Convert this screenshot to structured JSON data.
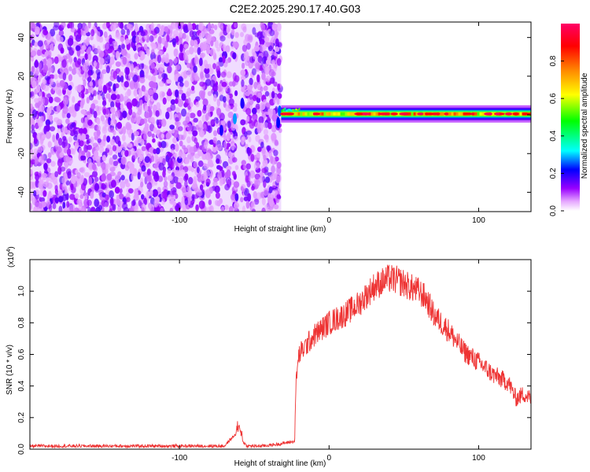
{
  "title": "C2E2.2025.290.17.40.G03",
  "chart_data": [
    {
      "type": "heatmap",
      "xlabel": "Height of straight line (km)",
      "ylabel": "Frequency (Hz)",
      "xlim": [
        -200,
        135
      ],
      "ylim": [
        -50,
        48
      ],
      "xticks": [
        -100,
        0,
        100
      ],
      "yticks": [
        -40,
        -20,
        0,
        20,
        40
      ],
      "colorbar": {
        "label": "Normalized spectral amplitude",
        "range": [
          0,
          1
        ],
        "ticks": [
          0.0,
          0.2,
          0.4,
          0.6,
          0.8
        ],
        "colors": [
          "#ffffff",
          "#e6a8ff",
          "#9900ff",
          "#0000ff",
          "#00ffff",
          "#00ff00",
          "#ffff00",
          "#ff8800",
          "#ff0000",
          "#ff0066"
        ]
      },
      "noise_region": {
        "x": [
          -200,
          -32
        ],
        "freq": [
          -50,
          47
        ],
        "amplitude": [
          0.0,
          0.15
        ]
      },
      "gap_at_x": -60,
      "tone": {
        "x": [
          -32,
          135
        ],
        "freq": 0.5,
        "peak_amplitude": 1.0
      }
    },
    {
      "type": "line",
      "xlabel": "Height of straight line (km)",
      "ylabel": "SNR (10 * v/v)",
      "yscale_label_base": "(x10",
      "yscale_label_exp": "4",
      "yscale_label_close": ")",
      "xlim": [
        -200,
        135
      ],
      "ylim": [
        0,
        1.2
      ],
      "xticks": [
        -100,
        0,
        100
      ],
      "yticks": [
        0.0,
        0.2,
        0.4,
        0.6,
        0.8,
        1.0
      ],
      "color": "#ee3333",
      "series": [
        {
          "x": [
            -200,
            -150,
            -100,
            -70,
            -62,
            -55,
            -45,
            -35,
            -23,
            -22,
            -20,
            -10,
            0,
            10,
            20,
            30,
            40,
            45,
            50,
            55,
            60,
            65,
            70,
            80,
            90,
            100,
            110,
            120,
            125,
            130,
            135
          ],
          "values": [
            0.02,
            0.02,
            0.02,
            0.02,
            0.1,
            0.02,
            0.02,
            0.03,
            0.05,
            0.45,
            0.6,
            0.72,
            0.8,
            0.85,
            0.92,
            1.03,
            1.08,
            1.07,
            1.05,
            1.02,
            1.0,
            0.95,
            0.85,
            0.75,
            0.62,
            0.55,
            0.47,
            0.42,
            0.32,
            0.35,
            0.32
          ]
        }
      ]
    }
  ]
}
